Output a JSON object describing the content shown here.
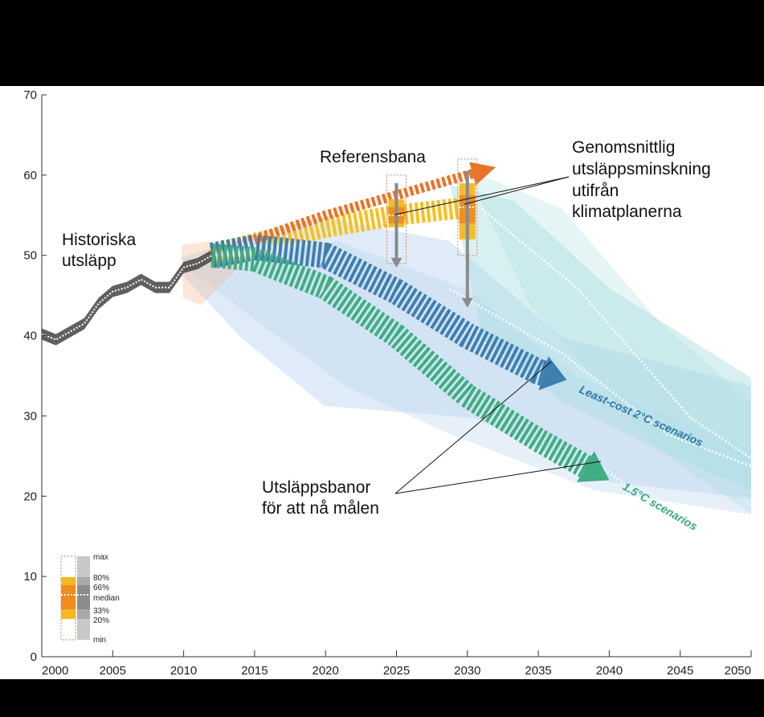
{
  "chart_data": {
    "type": "line",
    "title": "",
    "xlabel": "",
    "ylabel": "",
    "xlim": [
      2000,
      2050
    ],
    "ylim": [
      0,
      70
    ],
    "xticks": [
      2000,
      2005,
      2010,
      2015,
      2020,
      2025,
      2030,
      2035,
      2040,
      2045,
      2050
    ],
    "yticks": [
      0,
      10,
      20,
      30,
      40,
      50,
      60,
      70
    ],
    "grid": false,
    "colors": {
      "historical": "#4a4a4a",
      "reference": "#e8742a",
      "plans": "#f5c020",
      "least_cost_2c": "#3f7fb0",
      "one_point_five": "#3fae82",
      "range_2c": "#b9d3ef",
      "range_teal": "#a8dde0"
    },
    "series": [
      {
        "key": "historical",
        "name": "",
        "x": [
          2000,
          2001,
          2002,
          2003,
          2004,
          2005,
          2006,
          2007,
          2008,
          2009,
          2010,
          2011,
          2012
        ],
        "values": [
          40.2,
          39.5,
          40.5,
          41.5,
          44,
          45.5,
          46,
          47,
          46,
          46,
          48.5,
          49,
          50
        ]
      },
      {
        "key": "reference",
        "name": "",
        "x": [
          2012,
          2015,
          2020,
          2025,
          2030,
          2032
        ],
        "values": [
          50,
          52,
          55,
          57.5,
          60,
          61
        ]
      },
      {
        "key": "plans",
        "name": "",
        "x": [
          2012,
          2015,
          2020,
          2025,
          2030
        ],
        "values": [
          50,
          51.5,
          53.5,
          55,
          56
        ]
      },
      {
        "key": "least_cost_2c",
        "name": "Least-cost 2°C scenarios",
        "x": [
          2012,
          2015,
          2020,
          2025,
          2030,
          2035,
          2037
        ],
        "values": [
          50,
          51,
          50,
          45.5,
          40,
          35.5,
          34.5
        ]
      },
      {
        "key": "one_point_five",
        "name": "1.5°C scenarios",
        "x": [
          2012,
          2015,
          2020,
          2025,
          2030,
          2035,
          2040
        ],
        "values": [
          50,
          49.5,
          46,
          40,
          32.5,
          27,
          22
        ]
      }
    ],
    "boxplots": [
      {
        "x": 2025,
        "min": 49,
        "p20": 53.5,
        "p33": 54,
        "median": 55,
        "p66": 56,
        "p80": 57,
        "max": 60
      },
      {
        "x": 2030,
        "min": 50,
        "p20": 52,
        "p33": 54,
        "median": 56,
        "p66": 57.5,
        "p80": 59,
        "max": 62
      }
    ],
    "reduction_arrows": [
      {
        "x": 2025,
        "from": 59,
        "to": 48.5
      },
      {
        "x": 2030,
        "from": 60.5,
        "to": 43.5
      }
    ],
    "annotations": {
      "historical": [
        "Historiska",
        "utsläpp"
      ],
      "reference": "Referensbana",
      "plans": [
        "Genomsnittlig",
        "utsläppsminskning",
        "utifrån",
        "klimatplanerna"
      ],
      "targets": [
        "Utsläppsbanor",
        "för att nå målen"
      ],
      "least_cost_2c": "Least-cost 2°C scenarios",
      "one_point_five": "1.5°C scenarios"
    },
    "legend": {
      "placement": "bottom-left",
      "labels": [
        "max",
        "80%",
        "66%",
        "median",
        "33%",
        "20%",
        "min"
      ]
    }
  }
}
